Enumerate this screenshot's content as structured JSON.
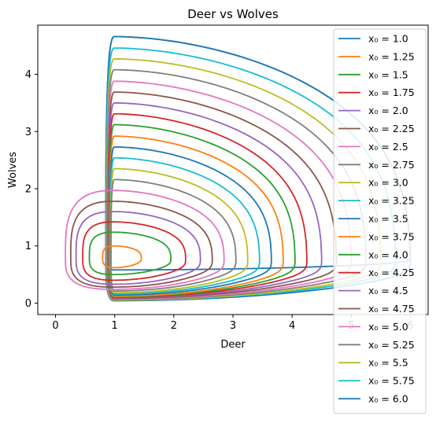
{
  "chart_data": {
    "type": "line",
    "title": "Deer vs Wolves",
    "xlabel": "Deer",
    "ylabel": "Wolves",
    "xlim": [
      -0.3,
      6.3
    ],
    "ylim": [
      -0.2,
      4.86
    ],
    "xticks": [
      0,
      1,
      2,
      3,
      4,
      5,
      6
    ],
    "yticks": [
      0,
      1,
      2,
      3,
      4
    ],
    "grid": false,
    "legend_position": "upper-right",
    "equilibrium": {
      "deer": 1.0,
      "wolves": 0.8
    },
    "series": [
      {
        "name": "x₀ = 1.0",
        "color": "#1f77b4",
        "x0": 1.0,
        "y0": 0.58,
        "ymax": 4.66,
        "xmax": 6.0
      },
      {
        "name": "x₀ = 1.25",
        "color": "#ff7f0e",
        "x0": 1.25,
        "y0": 0.62,
        "ymax": 1.0,
        "xmax": 1.45
      },
      {
        "name": "x₀ = 1.5",
        "color": "#2ca02c",
        "x0": 1.5,
        "y0": 0.5,
        "ymax": 1.24,
        "xmax": 1.95
      },
      {
        "name": "x₀ = 1.75",
        "color": "#d62728",
        "x0": 1.75,
        "y0": 0.4,
        "ymax": 1.42,
        "xmax": 2.2
      },
      {
        "name": "x₀ = 2.0",
        "color": "#9467bd",
        "x0": 2.0,
        "y0": 0.33,
        "ymax": 1.6,
        "xmax": 2.45
      },
      {
        "name": "x₀ = 2.25",
        "color": "#8c564b",
        "x0": 2.25,
        "y0": 0.28,
        "ymax": 1.78,
        "xmax": 2.65
      },
      {
        "name": "x₀ = 2.5",
        "color": "#e377c2",
        "x0": 2.5,
        "y0": 0.24,
        "ymax": 1.97,
        "xmax": 2.85
      },
      {
        "name": "x₀ = 2.75",
        "color": "#7f7f7f",
        "x0": 2.75,
        "y0": 0.21,
        "ymax": 2.16,
        "xmax": 3.05
      },
      {
        "name": "x₀ = 3.0",
        "color": "#bcbd22",
        "x0": 3.0,
        "y0": 0.18,
        "ymax": 2.35,
        "xmax": 3.25
      },
      {
        "name": "x₀ = 3.25",
        "color": "#17becf",
        "x0": 3.25,
        "y0": 0.16,
        "ymax": 2.54,
        "xmax": 3.45
      },
      {
        "name": "x₀ = 3.5",
        "color": "#1f77b4",
        "x0": 3.5,
        "y0": 0.14,
        "ymax": 2.73,
        "xmax": 3.65
      },
      {
        "name": "x₀ = 3.75",
        "color": "#ff7f0e",
        "x0": 3.75,
        "y0": 0.12,
        "ymax": 2.92,
        "xmax": 3.85
      },
      {
        "name": "x₀ = 4.0",
        "color": "#2ca02c",
        "x0": 4.0,
        "y0": 0.11,
        "ymax": 3.12,
        "xmax": 4.05
      },
      {
        "name": "x₀ = 4.25",
        "color": "#d62728",
        "x0": 4.25,
        "y0": 0.1,
        "ymax": 3.31,
        "xmax": 4.25
      },
      {
        "name": "x₀ = 4.5",
        "color": "#9467bd",
        "x0": 4.5,
        "y0": 0.09,
        "ymax": 3.5,
        "xmax": 4.5
      },
      {
        "name": "x₀ = 4.75",
        "color": "#8c564b",
        "x0": 4.75,
        "y0": 0.08,
        "ymax": 3.69,
        "xmax": 4.75
      },
      {
        "name": "x₀ = 5.0",
        "color": "#e377c2",
        "x0": 5.0,
        "y0": 0.07,
        "ymax": 3.88,
        "xmax": 5.0
      },
      {
        "name": "x₀ = 5.25",
        "color": "#7f7f7f",
        "x0": 5.25,
        "y0": 0.06,
        "ymax": 4.08,
        "xmax": 5.25
      },
      {
        "name": "x₀ = 5.5",
        "color": "#bcbd22",
        "x0": 5.5,
        "y0": 0.05,
        "ymax": 4.27,
        "xmax": 5.5
      },
      {
        "name": "x₀ = 5.75",
        "color": "#17becf",
        "x0": 5.75,
        "y0": 0.05,
        "ymax": 4.46,
        "xmax": 5.75
      },
      {
        "name": "x₀ = 6.0",
        "color": "#1f77b4",
        "x0": 6.0,
        "y0": 0.04,
        "ymax": 4.66,
        "xmax": 6.0
      }
    ]
  }
}
